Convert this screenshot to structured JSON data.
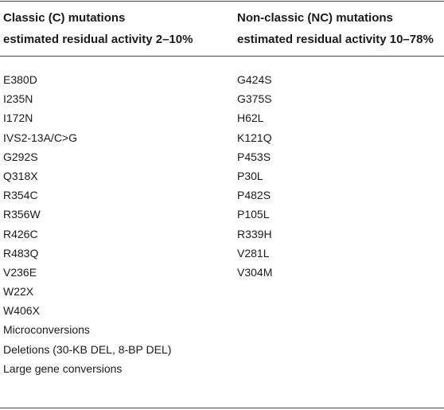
{
  "table": {
    "headers": [
      {
        "line1": "Classic (C) mutations",
        "line2": "estimated residual activity 2–10%"
      },
      {
        "line1": "Non-classic (NC) mutations",
        "line2": "estimated residual activity 10–78%"
      }
    ],
    "classic": [
      "E380D",
      "I235N",
      "I172N",
      "IVS2-13A/C>G",
      "G292S",
      "Q318X",
      "R354C",
      "R356W",
      "R426C",
      "R483Q",
      "V236E",
      "W22X",
      "W406X",
      "Microconversions",
      "Deletions (30-KB DEL, 8-BP DEL)",
      "Large gene conversions"
    ],
    "nonclassic": [
      "G424S",
      "G375S",
      "H62L",
      "K121Q",
      "P453S",
      "P30L",
      "P482S",
      "P105L",
      "R339H",
      "V281L",
      "V304M"
    ]
  }
}
